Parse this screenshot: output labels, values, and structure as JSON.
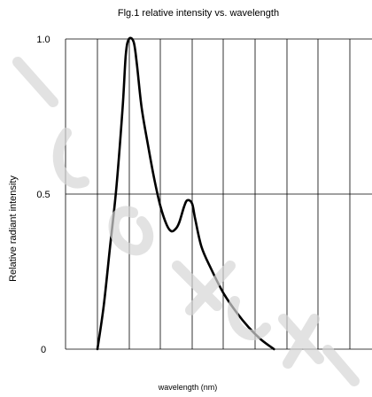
{
  "chart_data": {
    "type": "line",
    "title": "Flg.1 relative intensity vs. wavelength",
    "xlabel": "wavelength (nm)",
    "ylabel": "Relative radiant intensity",
    "x_tick_labels": [],
    "y_ticks": [
      0,
      0.5,
      1.0
    ],
    "y_tick_labels": [
      "0",
      "0.5",
      "1.0"
    ],
    "ylim": [
      0,
      1.0
    ],
    "grid": true,
    "legend": "none",
    "series": [
      {
        "values": [
          [
            0.0,
            0.0
          ],
          [
            0.2,
            0.14
          ],
          [
            0.4,
            0.33
          ],
          [
            0.6,
            0.52
          ],
          [
            0.8,
            0.78
          ],
          [
            0.9,
            0.95
          ],
          [
            1.0,
            1.0
          ],
          [
            1.15,
            0.99
          ],
          [
            1.25,
            0.92
          ],
          [
            1.4,
            0.78
          ],
          [
            1.6,
            0.66
          ],
          [
            1.8,
            0.55
          ],
          [
            2.0,
            0.46
          ],
          [
            2.2,
            0.4
          ],
          [
            2.35,
            0.38
          ],
          [
            2.5,
            0.39
          ],
          [
            2.6,
            0.41
          ],
          [
            2.75,
            0.46
          ],
          [
            2.85,
            0.48
          ],
          [
            3.0,
            0.47
          ],
          [
            3.1,
            0.42
          ],
          [
            3.3,
            0.33
          ],
          [
            3.6,
            0.26
          ],
          [
            4.0,
            0.18
          ],
          [
            4.4,
            0.12
          ],
          [
            4.8,
            0.07
          ],
          [
            5.2,
            0.03
          ],
          [
            5.6,
            0.0
          ]
        ]
      }
    ],
    "colors": {
      "line": "#000000",
      "grid": "#000000",
      "watermark": "#d6d6d6"
    }
  }
}
